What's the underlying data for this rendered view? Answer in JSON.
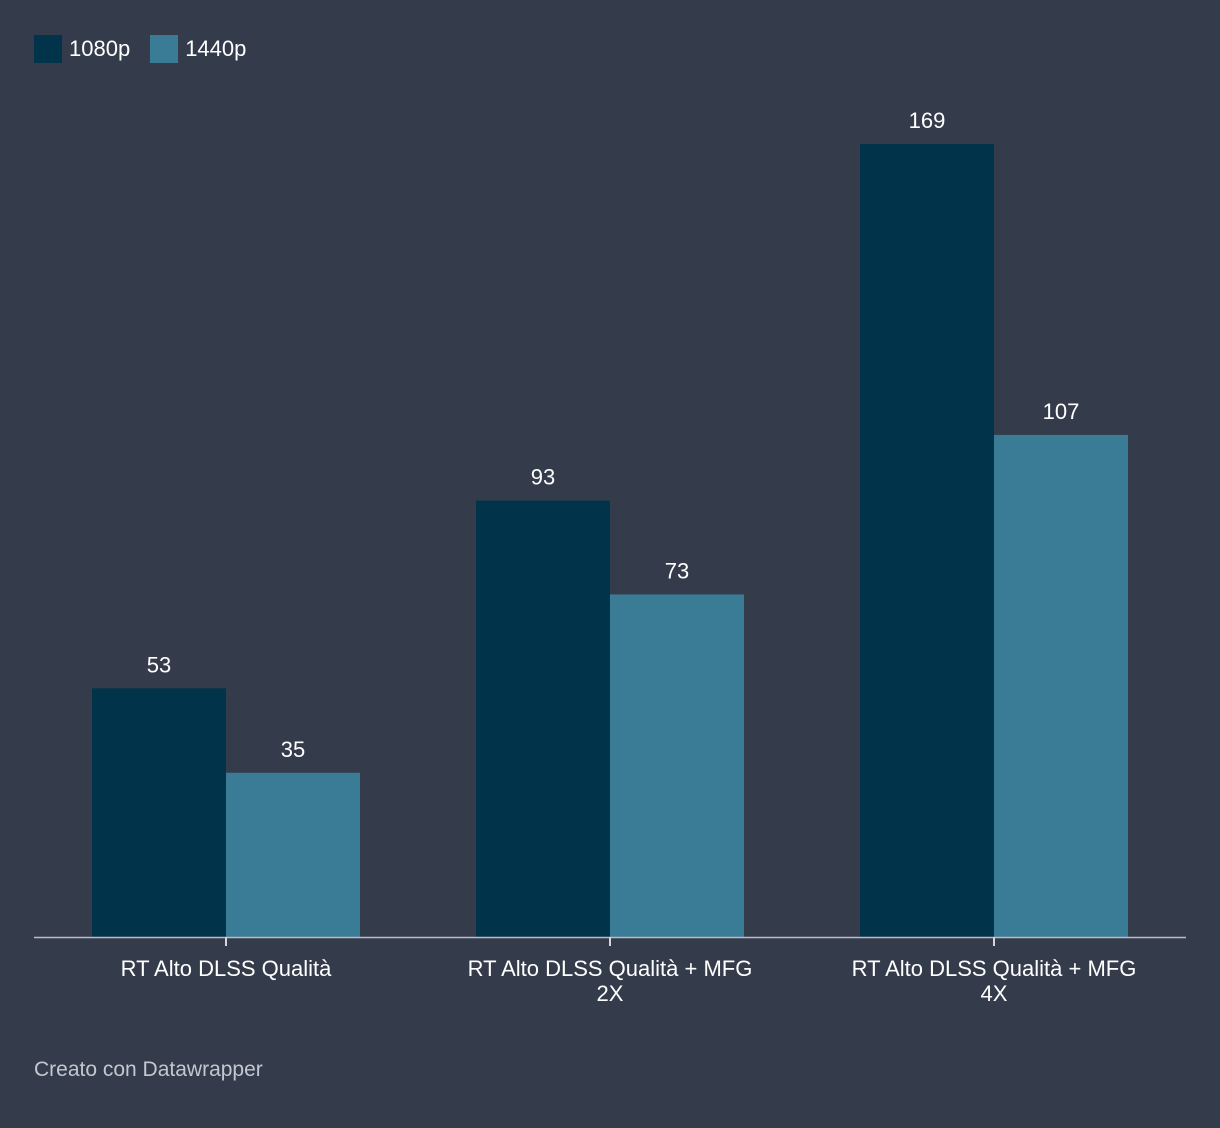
{
  "chart_data": {
    "type": "bar",
    "categories": [
      [
        "RT Alto DLSS Qualità"
      ],
      [
        "RT Alto DLSS Qualità + MFG",
        "2X"
      ],
      [
        "RT Alto DLSS Qualità + MFG",
        "4X"
      ]
    ],
    "series": [
      {
        "name": "1080p",
        "color": "#01344b",
        "values": [
          53,
          93,
          169
        ]
      },
      {
        "name": "1440p",
        "color": "#3a7b96",
        "values": [
          35,
          73,
          107
        ]
      }
    ],
    "ylim": [
      0,
      169
    ],
    "title": "",
    "xlabel": "",
    "ylabel": "",
    "legend_position": "top-left",
    "grid": false
  },
  "credit": "Creato con Datawrapper"
}
